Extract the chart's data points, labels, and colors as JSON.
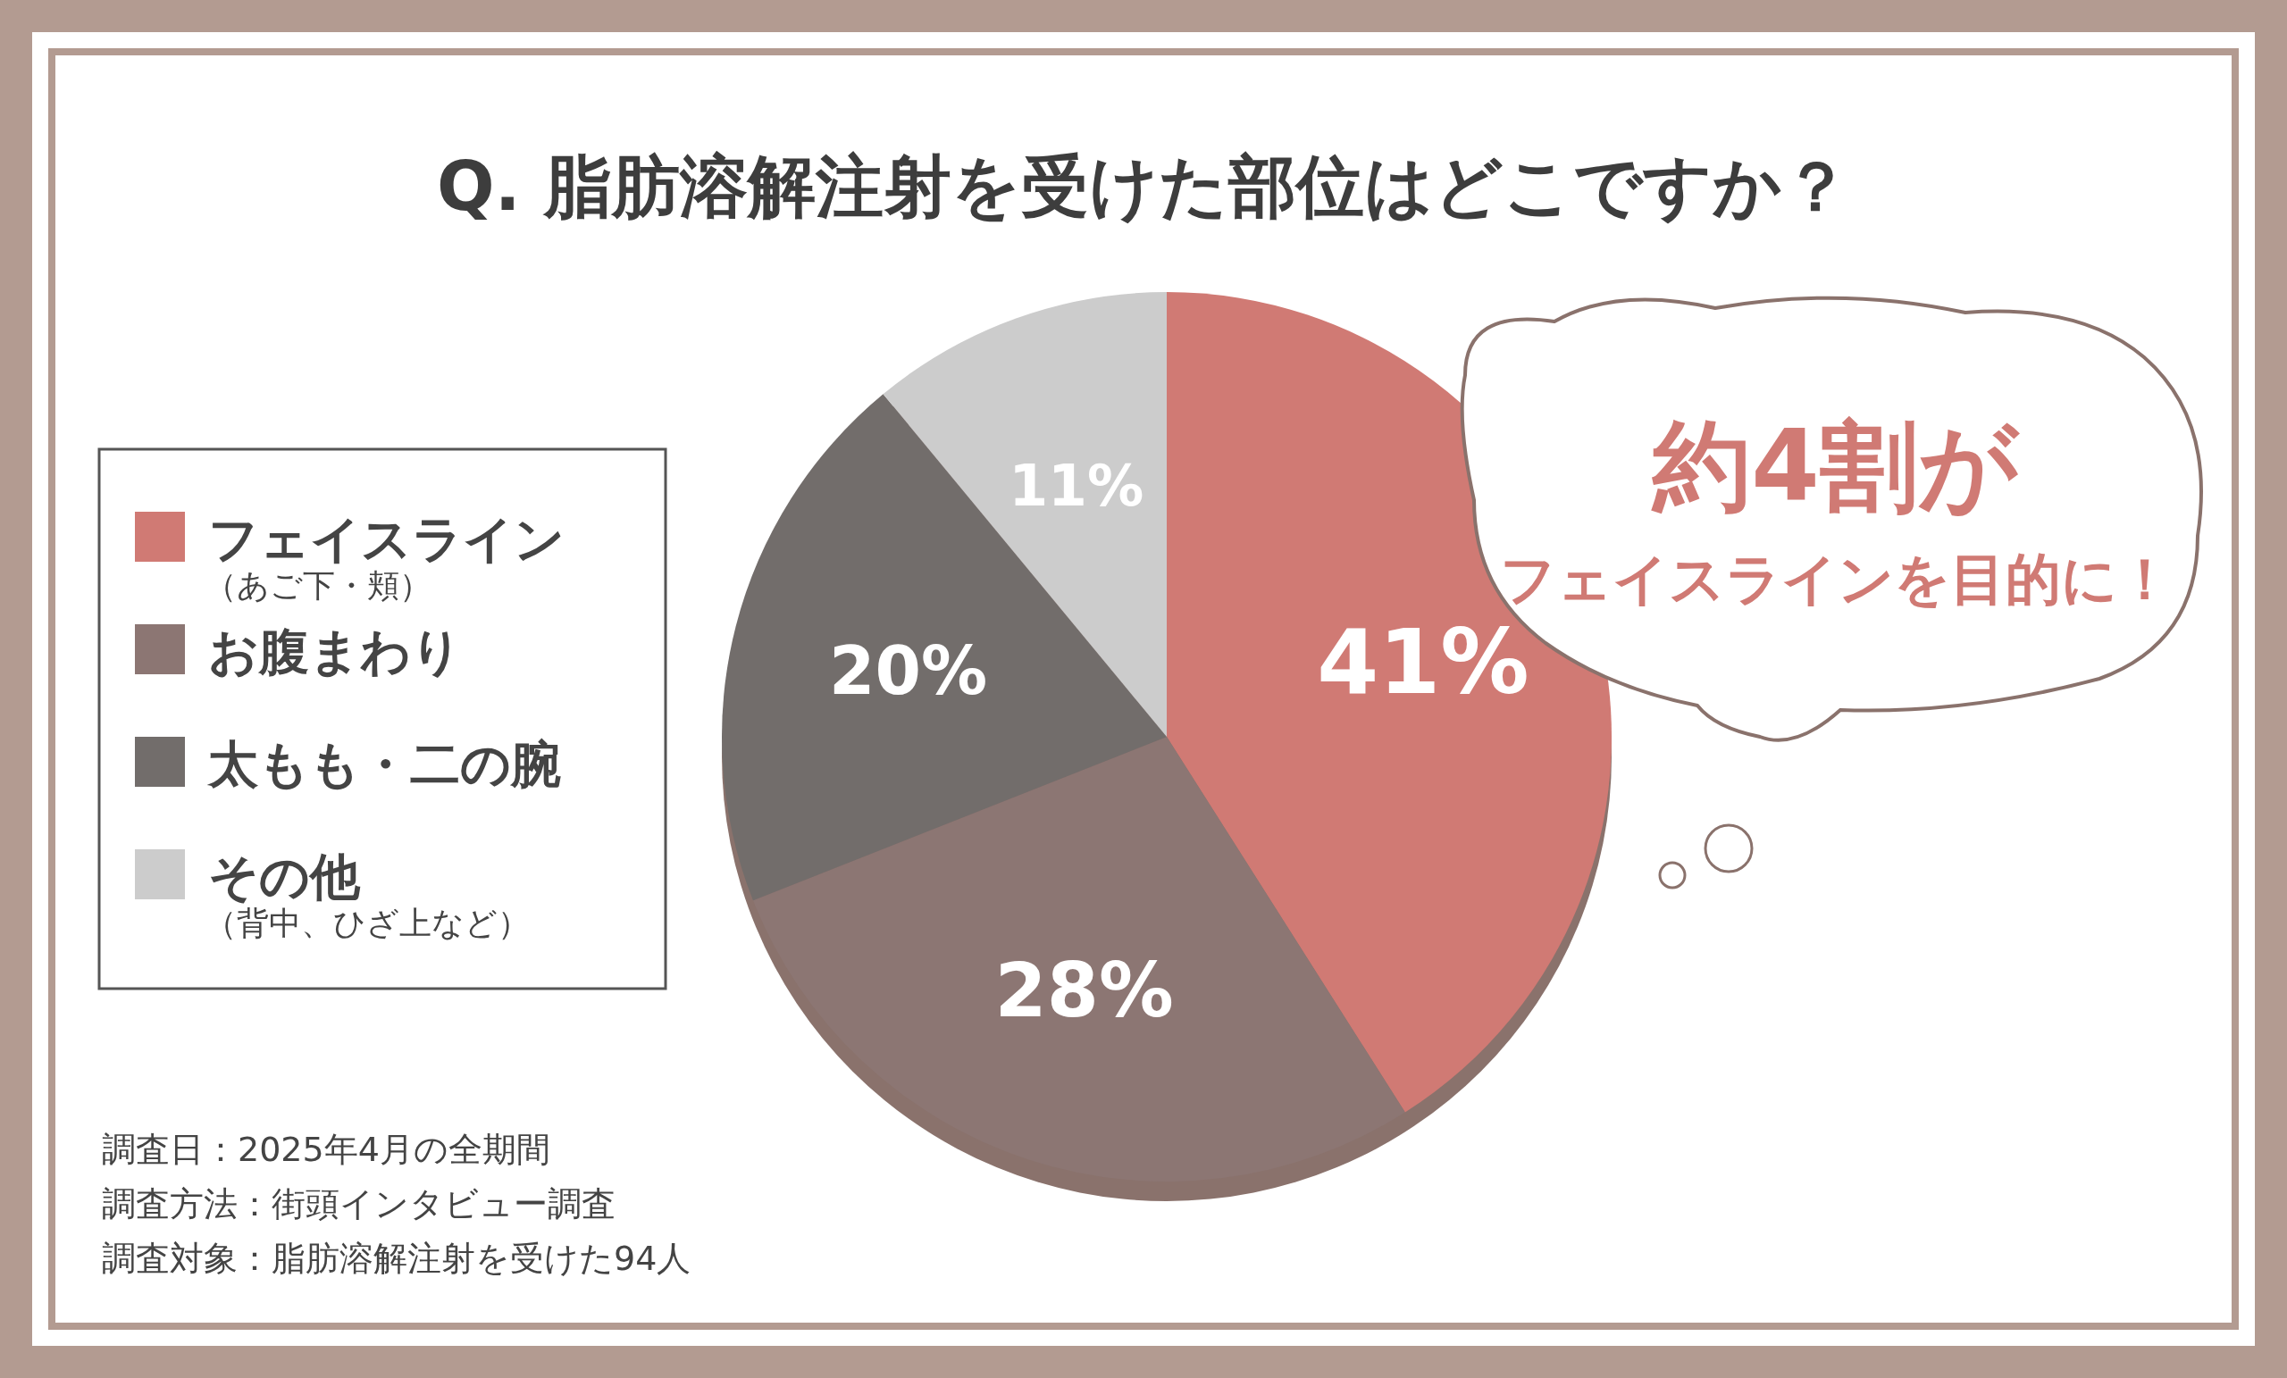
{
  "chart_data": {
    "type": "pie",
    "title": "Q. 脂肪溶解注射を受けた部位はどこですか？",
    "categories": [
      "フェイスライン（あご下・頬）",
      "お腹まわり",
      "太もも・二の腕",
      "その他（背中、ひざ上など）"
    ],
    "value_labels": [
      "41%",
      "28%",
      "20%",
      "11%"
    ],
    "values": [
      41,
      28,
      20,
      11
    ],
    "colors": [
      "#d07a74",
      "#8c7673",
      "#726d6b",
      "#cccccc"
    ],
    "legend": "left",
    "annotations": [
      "約4割が",
      "フェイスラインを目的に！",
      "調査日：2025年4月の全期間",
      "調査方法：街頭インタビュー調査",
      "調査対象：脂肪溶解注射を受けた94人"
    ]
  }
}
